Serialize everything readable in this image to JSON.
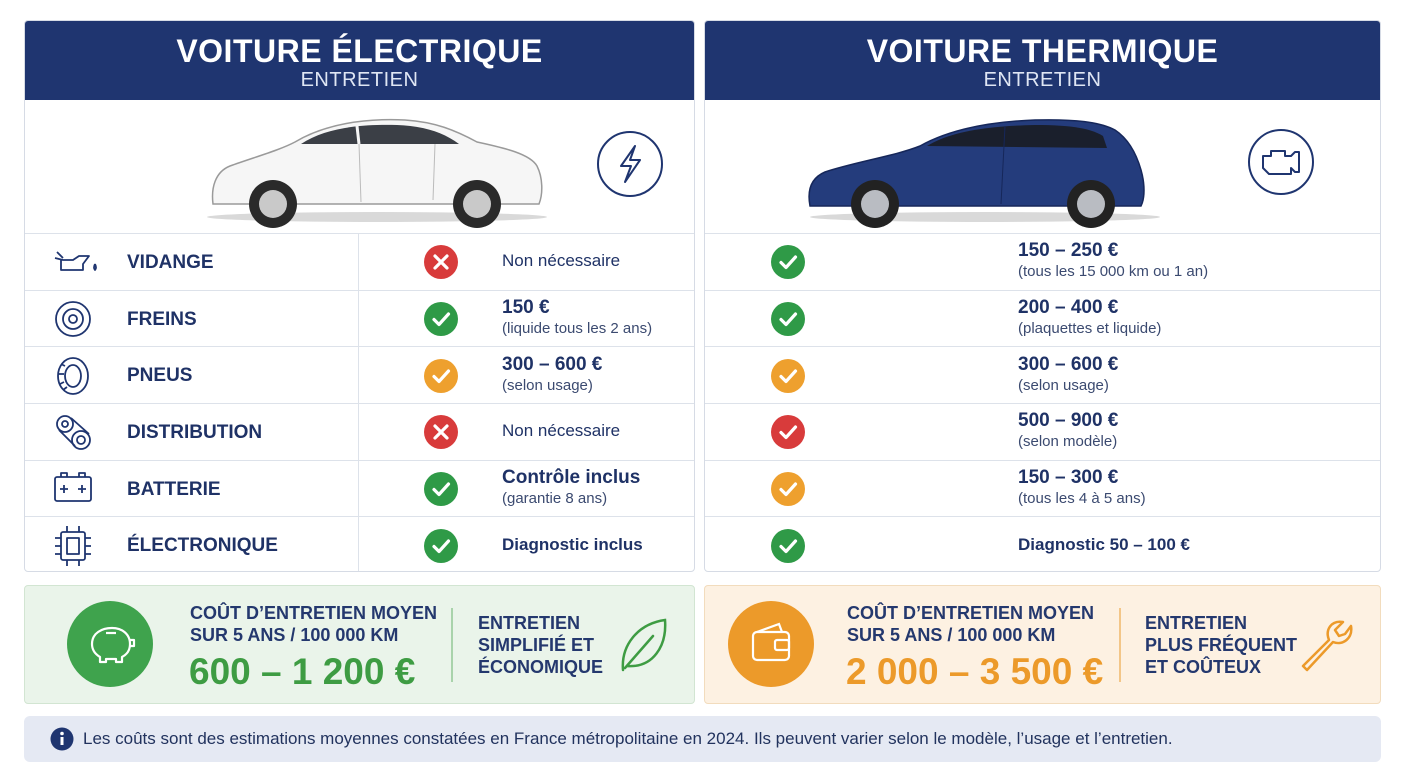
{
  "categories": [
    "VIDANGE",
    "FREINS",
    "PNEUS",
    "DISTRIBUTION",
    "BATTERIE",
    "ÉLECTRONIQUE"
  ],
  "electric": {
    "title": "VOITURE ÉLECTRIQUE",
    "subtitle": "ENTRETIEN",
    "rows": [
      {
        "status": "cross",
        "color": "#d83b3b",
        "main": "Non nécessaire"
      },
      {
        "status": "check",
        "color": "#2f9a47",
        "main": "150 €",
        "note": "(liquide tous les 2 ans)"
      },
      {
        "status": "check",
        "color": "#eea02e",
        "main": "300 – 600 €",
        "note": "(selon usage)"
      },
      {
        "status": "cross",
        "color": "#d83b3b",
        "main": "Non nécessaire"
      },
      {
        "status": "check",
        "color": "#2f9a47",
        "main": "Contrôle inclus",
        "note": "(garantie 8 ans)"
      },
      {
        "status": "check",
        "color": "#2f9a47",
        "main": "Diagnostic inclus"
      }
    ]
  },
  "thermal": {
    "title": "VOITURE THERMIQUE",
    "subtitle": "ENTRETIEN",
    "rows": [
      {
        "status": "check",
        "color": "#2f9a47",
        "main": "150 – 250 €",
        "note": "(tous les 15 000 km ou 1 an)"
      },
      {
        "status": "check",
        "color": "#2f9a47",
        "main": "200 – 400 €",
        "note": "(plaquettes et liquide)"
      },
      {
        "status": "check",
        "color": "#eea02e",
        "main": "300 – 600 €",
        "note": "(selon usage)"
      },
      {
        "status": "check",
        "color": "#d83b3b",
        "main": "500 – 900 €",
        "note": "(selon modèle)"
      },
      {
        "status": "check",
        "color": "#eea02e",
        "main": "150 – 300 €",
        "note": "(tous les 4 à 5 ans)"
      },
      {
        "status": "check",
        "color": "#2f9a47",
        "main": "Diagnostic 50 – 100 €"
      }
    ]
  },
  "summary": {
    "electric": {
      "label": [
        "COÛT D’ENTRETIEN MOYEN",
        "SUR 5 ANS / 100 000 KM"
      ],
      "amount": "600 – 1 200 €",
      "tagline": [
        "ENTRETIEN",
        "SIMPLIFIÉ ET",
        "ÉCONOMIQUE"
      ]
    },
    "thermal": {
      "label": [
        "COÛT D’ENTRETIEN MOYEN",
        "SUR 5 ANS / 100 000 KM"
      ],
      "amount": "2 000 – 3 500 €",
      "tagline": [
        "ENTRETIEN",
        "PLUS FRÉQUENT",
        "ET COÛTEUX"
      ]
    }
  },
  "footnote": "Les coûts sont des estimations moyennes constatées en France métropolitaine en 2024. Ils peuvent varier selon le modèle, l’usage et l’entretien."
}
